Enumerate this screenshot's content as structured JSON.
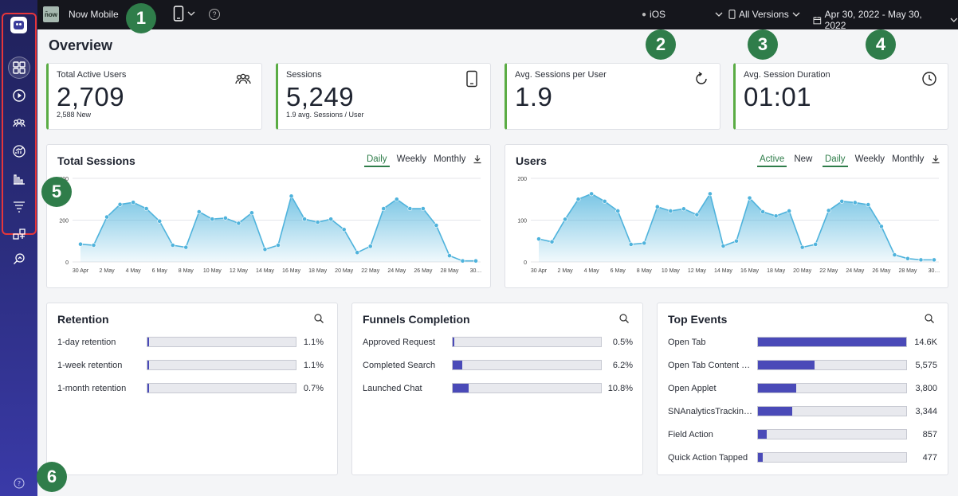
{
  "app": {
    "badge": "n̄ow",
    "name": "Now Mobile"
  },
  "topbar": {
    "platform": "iOS",
    "versions": "All Versions",
    "date_range": "Apr 30, 2022 - May 30, 2022",
    "help_glyph": "?"
  },
  "callouts": [
    "1",
    "2",
    "3",
    "4",
    "5",
    "6"
  ],
  "page": {
    "title": "Overview"
  },
  "kpis": [
    {
      "label": "Total Active Users",
      "value": "2,709",
      "sub": "2,588 New",
      "icon": "users-icon"
    },
    {
      "label": "Sessions",
      "value": "5,249",
      "sub": "1.9 avg. Sessions / User",
      "icon": "phone-icon"
    },
    {
      "label": "Avg. Sessions per User",
      "value": "1.9",
      "sub": "",
      "icon": "refresh-icon"
    },
    {
      "label": "Avg. Session Duration",
      "value": "01:01",
      "sub": "",
      "icon": "clock-icon"
    }
  ],
  "sessions_panel": {
    "title": "Total Sessions",
    "tabs": [
      "Daily",
      "Weekly",
      "Monthly"
    ],
    "active_tab": "Daily"
  },
  "users_panel": {
    "title": "Users",
    "mode_tabs": [
      "Active",
      "New"
    ],
    "active_mode": "Active",
    "tabs": [
      "Daily",
      "Weekly",
      "Monthly"
    ],
    "active_tab": "Daily"
  },
  "chart_data": [
    {
      "type": "area",
      "title": "Total Sessions",
      "ylim": [
        0,
        400
      ],
      "y_ticks": [
        "0",
        "200",
        "400"
      ],
      "x_ticks": [
        "30 Apr",
        "2 May",
        "4 May",
        "6 May",
        "8 May",
        "10 May",
        "12 May",
        "14 May",
        "16 May",
        "18 May",
        "20 May",
        "22 May",
        "24 May",
        "26 May",
        "28 May",
        "30…"
      ],
      "values": [
        85,
        80,
        215,
        275,
        285,
        255,
        195,
        80,
        70,
        240,
        205,
        210,
        185,
        235,
        60,
        80,
        315,
        205,
        190,
        205,
        155,
        45,
        75,
        255,
        300,
        255,
        255,
        175,
        30,
        5,
        5
      ],
      "color": "#4fb3dc"
    },
    {
      "type": "area",
      "title": "Users",
      "ylim": [
        0,
        200
      ],
      "y_ticks": [
        "0",
        "100",
        "200"
      ],
      "x_ticks": [
        "30 Apr",
        "2 May",
        "4 May",
        "6 May",
        "8 May",
        "10 May",
        "12 May",
        "14 May",
        "16 May",
        "18 May",
        "20 May",
        "22 May",
        "24 May",
        "26 May",
        "28 May",
        "30…"
      ],
      "values": [
        55,
        48,
        102,
        150,
        163,
        145,
        122,
        42,
        45,
        132,
        122,
        127,
        113,
        163,
        38,
        50,
        153,
        120,
        110,
        122,
        35,
        42,
        123,
        145,
        142,
        137,
        85,
        17,
        8,
        5,
        5
      ],
      "color": "#4fb3dc"
    }
  ],
  "retention": {
    "title": "Retention",
    "items": [
      {
        "label": "1-day retention",
        "value": "1.1%",
        "fraction": 0.011
      },
      {
        "label": "1-week retention",
        "value": "1.1%",
        "fraction": 0.011
      },
      {
        "label": "1-month retention",
        "value": "0.7%",
        "fraction": 0.007
      }
    ]
  },
  "funnels": {
    "title": "Funnels Completion",
    "items": [
      {
        "label": "Approved Request",
        "value": "0.5%",
        "fraction": 0.005
      },
      {
        "label": "Completed Search",
        "value": "6.2%",
        "fraction": 0.062
      },
      {
        "label": "Launched Chat",
        "value": "10.8%",
        "fraction": 0.108
      }
    ]
  },
  "top_events": {
    "title": "Top Events",
    "items": [
      {
        "label": "Open Tab",
        "value": "14.6K",
        "fraction": 1.0
      },
      {
        "label": "Open Tab Content …",
        "value": "5,575",
        "fraction": 0.38
      },
      {
        "label": "Open Applet",
        "value": "3,800",
        "fraction": 0.26
      },
      {
        "label": "SNAnalyticsTrackin…",
        "value": "3,344",
        "fraction": 0.23
      },
      {
        "label": "Field Action",
        "value": "857",
        "fraction": 0.06
      },
      {
        "label": "Quick Action Tapped",
        "value": "477",
        "fraction": 0.033
      }
    ]
  },
  "colors": {
    "accent": "#2f7d4a",
    "bar": "#4a4ab8",
    "kpi_border": "#5aac44",
    "callout": "#2f7d4a",
    "highlight": "#e6363a"
  }
}
